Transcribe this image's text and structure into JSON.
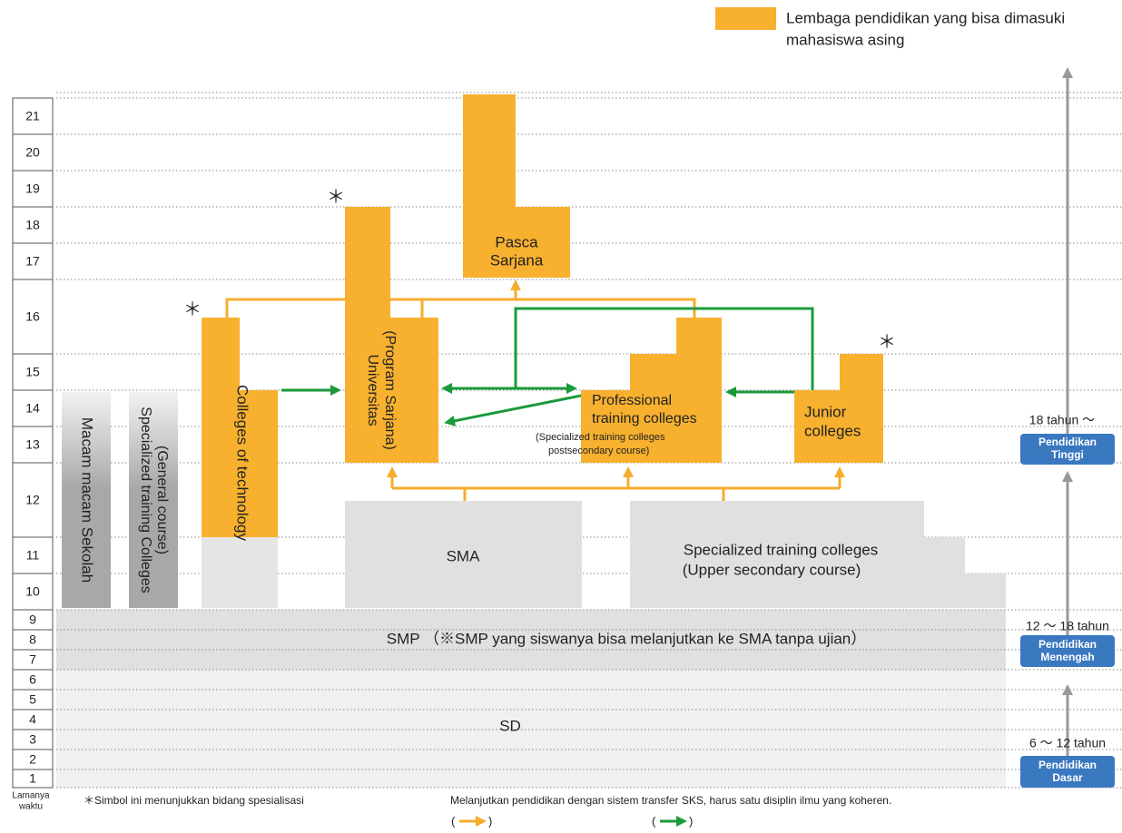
{
  "legend": {
    "lines": [
      "Lembaga pendidikan yang bisa dimasuki",
      "mahasiswa asing"
    ]
  },
  "years": [
    "1",
    "2",
    "3",
    "4",
    "5",
    "6",
    "7",
    "8",
    "9",
    "10",
    "11",
    "12",
    "13",
    "14",
    "15",
    "16",
    "17",
    "18",
    "19",
    "20",
    "21"
  ],
  "blocks": {
    "sd": "SD",
    "smp": "SMP （※SMP yang siswanya bisa melanjutkan ke SMA tanpa ujian）",
    "macam": "Macam macam Sekolah",
    "specialized_general": [
      "Specialized training Colleges",
      "(General course)"
    ],
    "colleges_technology": "Colleges of technology",
    "sma": "SMA",
    "specialized_upper": [
      "Specialized training colleges",
      "(Upper secondary course)"
    ],
    "universitas": [
      "Universitas",
      "(Program Sarjana)"
    ],
    "pasca": [
      "Pasca",
      "Sarjana"
    ],
    "professional": [
      "Professional",
      "training colleges",
      "(Specialized training colleges",
      "postsecondary course)"
    ],
    "junior": [
      "Junior",
      "colleges"
    ]
  },
  "asterisks": [
    "＊",
    "＊",
    "＊"
  ],
  "stages": [
    {
      "age": "18 tahun ～",
      "lines": [
        "Pendidikan",
        "Tinggi"
      ]
    },
    {
      "age": "12 ～ 18 tahun",
      "lines": [
        "Pendidikan",
        "Menengah"
      ]
    },
    {
      "age": "6 ～ 12 tahun",
      "lines": [
        "Pendidikan",
        "Dasar"
      ]
    }
  ],
  "footer": {
    "duration": [
      "Lamanya",
      "waktu"
    ],
    "asterisk_note": "＊Simbol ini menunjukkan bidang spesialisasi",
    "transfer_note": "Melanjutkan pendidikan dengan sistem transfer SKS, harus satu disiplin ilmu yang koheren.",
    "open": "(",
    "close": ")"
  }
}
